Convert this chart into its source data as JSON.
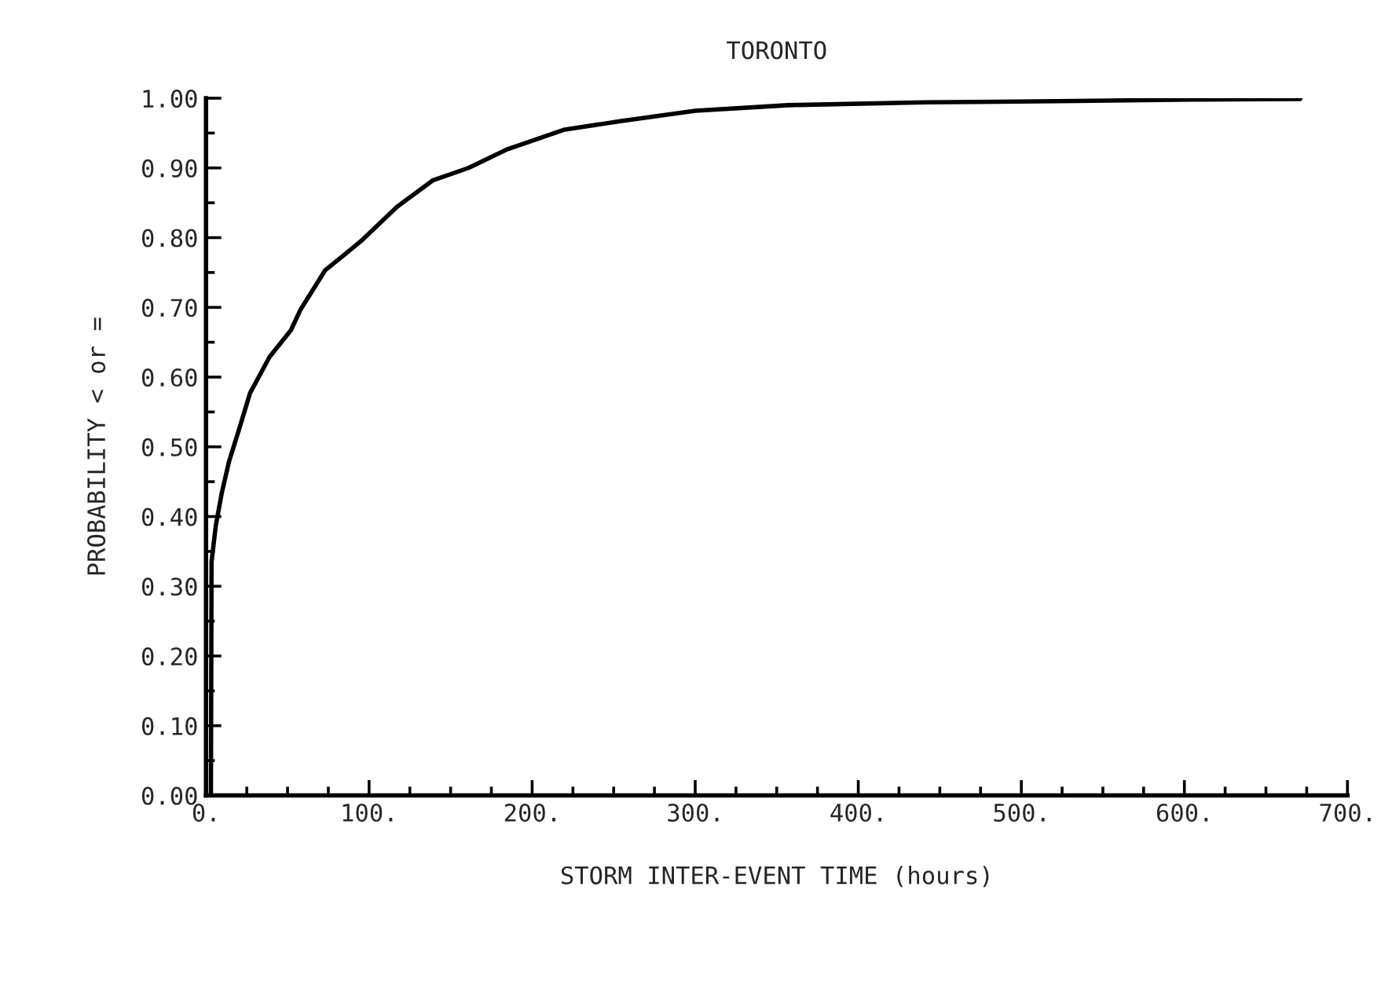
{
  "chart_data": {
    "type": "line",
    "title": "TORONTO",
    "xlabel": "STORM INTER-EVENT TIME (hours)",
    "ylabel": "PROBABILITY < or =",
    "series": [
      {
        "color": "#000000",
        "x": [
          3,
          3.4,
          6,
          9.6,
          14,
          20,
          27,
          39,
          52,
          58,
          73,
          83,
          95,
          117,
          139,
          161,
          185,
          220,
          254,
          300,
          357,
          441,
          534,
          605,
          671
        ],
        "values": [
          0,
          0.335,
          0.387,
          0.433,
          0.478,
          0.523,
          0.577,
          0.629,
          0.667,
          0.697,
          0.753,
          0.772,
          0.795,
          0.844,
          0.882,
          0.9,
          0.927,
          0.955,
          0.967,
          0.982,
          0.99,
          0.994,
          0.996,
          0.998,
          0.999
        ]
      }
    ],
    "xlim": [
      0,
      700
    ],
    "ylim": [
      0,
      1
    ],
    "xticks": [
      {
        "value": 0,
        "label": "0."
      },
      {
        "value": 100,
        "label": "100."
      },
      {
        "value": 200,
        "label": "200."
      },
      {
        "value": 300,
        "label": "300."
      },
      {
        "value": 400,
        "label": "400."
      },
      {
        "value": 500,
        "label": "500."
      },
      {
        "value": 600,
        "label": "600."
      },
      {
        "value": 700,
        "label": "700."
      }
    ],
    "yticks": [
      {
        "value": 0,
        "label": "0.00"
      },
      {
        "value": 0.1,
        "label": "0.10"
      },
      {
        "value": 0.2,
        "label": "0.20"
      },
      {
        "value": 0.3,
        "label": "0.30"
      },
      {
        "value": 0.4,
        "label": "0.40"
      },
      {
        "value": 0.5,
        "label": "0.50"
      },
      {
        "value": 0.6,
        "label": "0.60"
      },
      {
        "value": 0.7,
        "label": "0.70"
      },
      {
        "value": 0.8,
        "label": "0.80"
      },
      {
        "value": 0.9,
        "label": "0.90"
      },
      {
        "value": 1.0,
        "label": "1.00"
      }
    ],
    "grid": false,
    "legend": false,
    "marker": "none",
    "line_style": "solid"
  }
}
